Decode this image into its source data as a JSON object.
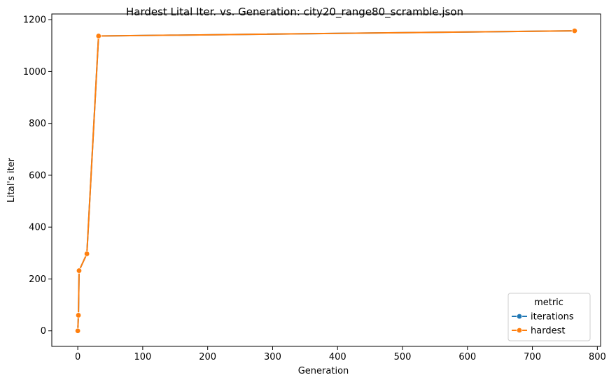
{
  "chart_data": {
    "type": "line",
    "title": "Hardest Lital Iter. vs. Generation: city20_range80_scramble.json",
    "xlabel": "Generation",
    "ylabel": "Lital's iter",
    "xlim": [
      -40,
      805
    ],
    "ylim": [
      -60,
      1222
    ],
    "x_ticks": [
      0,
      100,
      200,
      300,
      400,
      500,
      600,
      700,
      800
    ],
    "y_ticks": [
      0,
      200,
      400,
      600,
      800,
      1000,
      1200
    ],
    "grid": false,
    "legend": {
      "title": "metric",
      "position": "lower-right"
    },
    "series": [
      {
        "name": "iterations",
        "color": "#1f77b4",
        "marker": "circle",
        "x": [
          0,
          1,
          2,
          14,
          32,
          765
        ],
        "y": [
          0,
          60,
          232,
          297,
          1137,
          1157
        ]
      },
      {
        "name": "hardest",
        "color": "#ff7f0e",
        "marker": "circle",
        "x": [
          0,
          1,
          2,
          14,
          32,
          765
        ],
        "y": [
          0,
          60,
          232,
          297,
          1137,
          1157
        ]
      }
    ]
  }
}
